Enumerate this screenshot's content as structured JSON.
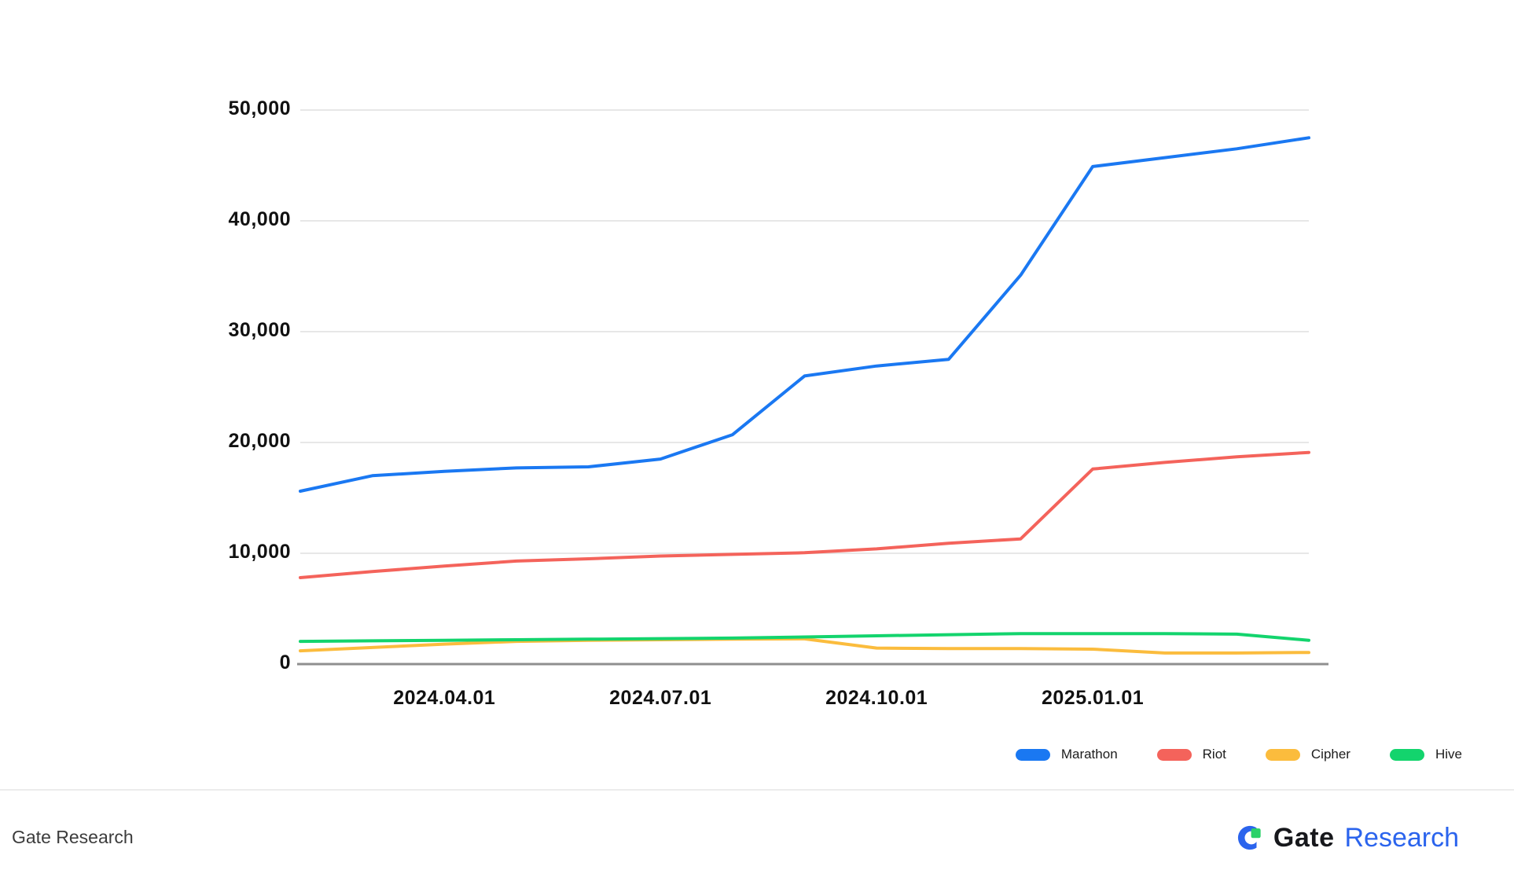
{
  "chart_data": {
    "type": "line",
    "title": "",
    "xlabel": "",
    "ylabel": "",
    "x": [
      "2024.02",
      "2024.03",
      "2024.04",
      "2024.05",
      "2024.06",
      "2024.07",
      "2024.08",
      "2024.09",
      "2024.10",
      "2024.11",
      "2024.12",
      "2025.01",
      "2025.02",
      "2025.03",
      "2025.04"
    ],
    "series": [
      {
        "name": "Marathon",
        "color": "#1a78f2",
        "values": [
          15600,
          17000,
          17400,
          17700,
          17800,
          18500,
          20700,
          26000,
          26900,
          27500,
          35100,
          44900,
          45700,
          46500,
          47500
        ]
      },
      {
        "name": "Riot",
        "color": "#f4635b",
        "values": [
          7800,
          8350,
          8850,
          9300,
          9500,
          9750,
          9900,
          10050,
          10400,
          10900,
          11300,
          17600,
          18200,
          18700,
          19100
        ]
      },
      {
        "name": "Cipher",
        "color": "#fbbc3d",
        "values": [
          1200,
          1500,
          1800,
          2050,
          2150,
          2200,
          2250,
          2280,
          1450,
          1400,
          1400,
          1350,
          1000,
          1000,
          1050
        ]
      },
      {
        "name": "Hive",
        "color": "#13d46d",
        "values": [
          2050,
          2100,
          2150,
          2200,
          2250,
          2300,
          2350,
          2450,
          2550,
          2650,
          2750,
          2750,
          2750,
          2700,
          2150
        ]
      }
    ],
    "x_tick_labels": [
      {
        "label": "2024.04.01",
        "index": 2
      },
      {
        "label": "2024.07.01",
        "index": 5
      },
      {
        "label": "2024.10.01",
        "index": 8
      },
      {
        "label": "2025.01.01",
        "index": 11
      }
    ],
    "y_ticks": [
      {
        "value": 0,
        "label": "0"
      },
      {
        "value": 10000,
        "label": "10,000"
      },
      {
        "value": 20000,
        "label": "20,000"
      },
      {
        "value": 30000,
        "label": "30,000"
      },
      {
        "value": 40000,
        "label": "40,000"
      },
      {
        "value": 50000,
        "label": "50,000"
      }
    ],
    "ylim": [
      0,
      50000
    ],
    "grid": true,
    "legend_position": "bottom-right"
  },
  "colors": {
    "gridline": "#e7e7e7",
    "axis": "#8f8f8f",
    "background": "#ffffff"
  },
  "footer": {
    "watermark": "Gate Research",
    "logo": {
      "brand": "Gate",
      "product": "Research"
    }
  }
}
